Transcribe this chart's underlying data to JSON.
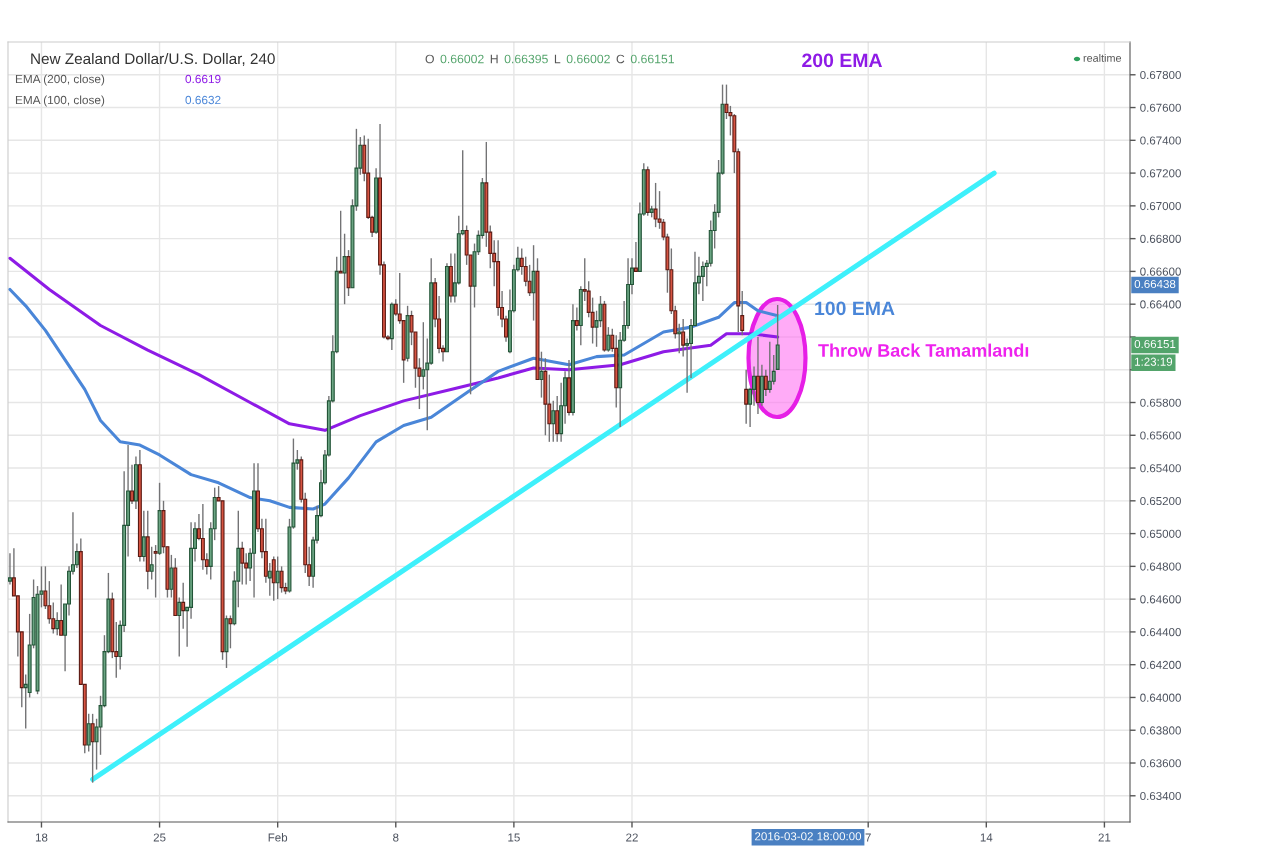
{
  "chart_data": {
    "type": "candlestick",
    "title": "New Zealand Dollar/U.S. Dollar, 240",
    "subtitle": "O 0.66002 H 0.66395 L 0.66002 C 0.66151",
    "categories": [
      null,
      null,
      null,
      null,
      null,
      null,
      null,
      null,
      "18",
      null,
      null,
      null,
      null,
      null,
      null,
      null,
      null,
      null,
      null,
      null,
      null,
      null,
      null,
      null,
      null,
      null,
      null,
      null,
      null,
      null,
      null,
      null,
      null,
      null,
      null,
      null,
      null,
      null,
      "25",
      null,
      null,
      null,
      null,
      null,
      null,
      null,
      null,
      null,
      null,
      null,
      null,
      null,
      null,
      null,
      null,
      null,
      null,
      null,
      null,
      null,
      null,
      null,
      null,
      null,
      null,
      null,
      null,
      null,
      "Feb",
      null,
      null,
      null,
      null,
      null,
      null,
      null,
      null,
      null,
      null,
      null,
      null,
      null,
      null,
      null,
      null,
      null,
      null,
      null,
      null,
      null,
      null,
      null,
      null,
      null,
      null,
      null,
      null,
      null,
      "8",
      null,
      null,
      null,
      null,
      null,
      null,
      null,
      null,
      null,
      null,
      null,
      null,
      null,
      null,
      null,
      null,
      null,
      null,
      null,
      null,
      null,
      null,
      null,
      null,
      null,
      null,
      null,
      null,
      null,
      "15",
      null,
      null,
      null,
      null,
      null,
      null,
      null,
      null,
      null,
      null,
      null,
      null,
      null,
      null,
      null,
      null,
      null,
      null,
      null,
      null,
      null,
      null,
      null,
      null,
      null,
      null,
      null,
      null,
      null,
      "22",
      null,
      null,
      null,
      null,
      null,
      null,
      null,
      null,
      null,
      null,
      null,
      null,
      null,
      null,
      null,
      null,
      null,
      null,
      null,
      null,
      null,
      null,
      null,
      null,
      null,
      null,
      null,
      null,
      null,
      null,
      null,
      null,
      null,
      null,
      null,
      null,
      null,
      null,
      null,
      null,
      null,
      null,
      null,
      null,
      null,
      null,
      null,
      null,
      null,
      null,
      null,
      null,
      null,
      null,
      null,
      null,
      null,
      null,
      null,
      "7",
      null,
      null,
      null,
      null,
      null,
      null,
      null,
      null,
      null,
      null,
      null,
      null,
      null,
      null,
      null,
      null,
      null,
      null,
      null,
      null,
      null,
      null,
      null,
      null,
      null,
      null,
      null,
      null,
      null,
      "14",
      null,
      null,
      null,
      null,
      null,
      null,
      null,
      null,
      null,
      null,
      null,
      null,
      null,
      null,
      null,
      null,
      null,
      null,
      null,
      null,
      null,
      null,
      null,
      null,
      null,
      null,
      null,
      null,
      null,
      "21",
      null,
      null,
      null,
      null,
      null,
      null
    ],
    "ohlc": [
      [
        0.6471,
        0.6488,
        0.6469,
        0.6473
      ],
      [
        0.6473,
        0.6491,
        0.6462,
        0.6462
      ],
      [
        0.6462,
        0.6462,
        0.6425,
        0.644
      ],
      [
        0.644,
        0.644,
        0.6394,
        0.6406
      ],
      [
        0.6406,
        0.6414,
        0.6381,
        0.6408
      ],
      [
        0.6403,
        0.6451,
        0.64,
        0.6432
      ],
      [
        0.6432,
        0.6472,
        0.643,
        0.6461
      ],
      [
        0.6404,
        0.6468,
        0.6402,
        0.6463
      ],
      [
        0.6463,
        0.648,
        0.6455,
        0.6465
      ],
      [
        0.6465,
        0.648,
        0.6454,
        0.6456
      ],
      [
        0.6456,
        0.6471,
        0.6445,
        0.6448
      ],
      [
        0.6448,
        0.6458,
        0.6439,
        0.6442
      ],
      [
        0.6442,
        0.6452,
        0.6438,
        0.6447
      ],
      [
        0.6447,
        0.6469,
        0.6438,
        0.6438
      ],
      [
        0.6438,
        0.6457,
        0.6416,
        0.6457
      ],
      [
        0.6457,
        0.648,
        0.645,
        0.6477
      ],
      [
        0.6477,
        0.6513,
        0.6475,
        0.6481
      ],
      [
        0.6481,
        0.6494,
        0.6479,
        0.6489
      ],
      [
        0.6489,
        0.6497,
        0.6408,
        0.6408
      ],
      [
        0.6408,
        0.6408,
        0.6366,
        0.6371
      ],
      [
        0.6371,
        0.639,
        0.6367,
        0.6384
      ],
      [
        0.6384,
        0.639,
        0.6348,
        0.6373
      ],
      [
        0.6373,
        0.6387,
        0.6356,
        0.6382
      ],
      [
        0.6382,
        0.6401,
        0.6365,
        0.6395
      ],
      [
        0.6395,
        0.6438,
        0.6394,
        0.6428
      ],
      [
        0.6428,
        0.6476,
        0.6427,
        0.646
      ],
      [
        0.646,
        0.6464,
        0.6424,
        0.6428
      ],
      [
        0.6428,
        0.6446,
        0.6412,
        0.6425
      ],
      [
        0.6425,
        0.6447,
        0.6417,
        0.6444
      ],
      [
        0.6444,
        0.6538,
        0.644,
        0.6505
      ],
      [
        0.6505,
        0.6554,
        0.6486,
        0.6526
      ],
      [
        0.6526,
        0.6542,
        0.6518,
        0.652
      ],
      [
        0.652,
        0.6547,
        0.6515,
        0.6542
      ],
      [
        0.6542,
        0.6551,
        0.6483,
        0.6486
      ],
      [
        0.6486,
        0.6514,
        0.6483,
        0.6498
      ],
      [
        0.6498,
        0.6514,
        0.6466,
        0.6477
      ],
      [
        0.6477,
        0.6492,
        0.6472,
        0.6481
      ],
      [
        0.6489,
        0.6493,
        0.6461,
        0.6488
      ],
      [
        0.6488,
        0.6531,
        0.6487,
        0.6514
      ],
      [
        0.6514,
        0.652,
        0.6488,
        0.6492
      ],
      [
        0.6492,
        0.6492,
        0.6461,
        0.6466
      ],
      [
        0.6466,
        0.6487,
        0.6461,
        0.6479
      ],
      [
        0.6479,
        0.6485,
        0.645,
        0.645
      ],
      [
        0.645,
        0.6461,
        0.6425,
        0.6458
      ],
      [
        0.6458,
        0.647,
        0.6442,
        0.6453
      ],
      [
        0.6453,
        0.6455,
        0.6431,
        0.6455
      ],
      [
        0.6455,
        0.6507,
        0.6448,
        0.6491
      ],
      [
        0.6491,
        0.6507,
        0.6483,
        0.6503
      ],
      [
        0.6503,
        0.6512,
        0.6496,
        0.6497
      ],
      [
        0.6497,
        0.6518,
        0.6478,
        0.6484
      ],
      [
        0.6484,
        0.6488,
        0.6475,
        0.648
      ],
      [
        0.648,
        0.6507,
        0.6472,
        0.6503
      ],
      [
        0.6503,
        0.6528,
        0.6496,
        0.6522
      ],
      [
        0.6522,
        0.6529,
        0.652,
        0.652
      ],
      [
        0.652,
        0.652,
        0.6423,
        0.6428
      ],
      [
        0.6428,
        0.645,
        0.6418,
        0.6448
      ],
      [
        0.6448,
        0.645,
        0.643,
        0.6445
      ],
      [
        0.6445,
        0.6477,
        0.6444,
        0.6471
      ],
      [
        0.6471,
        0.6514,
        0.6455,
        0.6491
      ],
      [
        0.6491,
        0.6495,
        0.6469,
        0.6482
      ],
      [
        0.6482,
        0.6488,
        0.6469,
        0.6479
      ],
      [
        0.6479,
        0.6491,
        0.6471,
        0.6488
      ],
      [
        0.6488,
        0.6543,
        0.6461,
        0.6526
      ],
      [
        0.6526,
        0.6543,
        0.6501,
        0.6503
      ],
      [
        0.6503,
        0.6509,
        0.6485,
        0.6489
      ],
      [
        0.6489,
        0.6509,
        0.647,
        0.6474
      ],
      [
        0.6473,
        0.6482,
        0.6462,
        0.6477
      ],
      [
        0.6484,
        0.6486,
        0.6459,
        0.647
      ],
      [
        0.647,
        0.6486,
        0.646,
        0.6477
      ],
      [
        0.6477,
        0.648,
        0.6464,
        0.6467
      ],
      [
        0.6467,
        0.647,
        0.6463,
        0.6465
      ],
      [
        0.6465,
        0.6509,
        0.6464,
        0.6504
      ],
      [
        0.6504,
        0.6558,
        0.6503,
        0.6543
      ],
      [
        0.6543,
        0.6551,
        0.6539,
        0.6545
      ],
      [
        0.6545,
        0.6547,
        0.6519,
        0.6521
      ],
      [
        0.6521,
        0.6525,
        0.6476,
        0.6481
      ],
      [
        0.6481,
        0.6492,
        0.6468,
        0.6474
      ],
      [
        0.6474,
        0.6498,
        0.6467,
        0.6496
      ],
      [
        0.6496,
        0.6517,
        0.6494,
        0.6511
      ],
      [
        0.6511,
        0.6539,
        0.651,
        0.6531
      ],
      [
        0.6531,
        0.6551,
        0.653,
        0.6548
      ],
      [
        0.6548,
        0.6584,
        0.6547,
        0.6581
      ],
      [
        0.6581,
        0.6621,
        0.658,
        0.6611
      ],
      [
        0.6611,
        0.6669,
        0.661,
        0.666
      ],
      [
        0.666,
        0.6697,
        0.6659,
        0.6659
      ],
      [
        0.6659,
        0.6683,
        0.664,
        0.6669
      ],
      [
        0.6669,
        0.6673,
        0.6645,
        0.665
      ],
      [
        0.665,
        0.6704,
        0.665,
        0.67
      ],
      [
        0.67,
        0.6747,
        0.6697,
        0.6723
      ],
      [
        0.6723,
        0.6742,
        0.6719,
        0.6737
      ],
      [
        0.6737,
        0.6743,
        0.6715,
        0.672
      ],
      [
        0.672,
        0.6741,
        0.6692,
        0.6693
      ],
      [
        0.6693,
        0.6694,
        0.6681,
        0.6684
      ],
      [
        0.6684,
        0.6723,
        0.6683,
        0.6717
      ],
      [
        0.6717,
        0.675,
        0.6658,
        0.6664
      ],
      [
        0.6664,
        0.6666,
        0.6619,
        0.662
      ],
      [
        0.662,
        0.6621,
        0.6618,
        0.6619
      ],
      [
        0.6619,
        0.6641,
        0.6612,
        0.664
      ],
      [
        0.664,
        0.6643,
        0.6633,
        0.6634
      ],
      [
        0.6634,
        0.6659,
        0.6628,
        0.663
      ],
      [
        0.663,
        0.663,
        0.6592,
        0.6606
      ],
      [
        0.6607,
        0.6639,
        0.6605,
        0.6633
      ],
      [
        0.6633,
        0.6636,
        0.6615,
        0.6623
      ],
      [
        0.6623,
        0.6623,
        0.6589,
        0.6601
      ],
      [
        0.6601,
        0.6607,
        0.6576,
        0.6596
      ],
      [
        0.6596,
        0.6629,
        0.6588,
        0.66
      ],
      [
        0.66,
        0.6619,
        0.6563,
        0.6604
      ],
      [
        0.6604,
        0.6668,
        0.6603,
        0.6653
      ],
      [
        0.6653,
        0.6656,
        0.6626,
        0.6631
      ],
      [
        0.6631,
        0.6645,
        0.661,
        0.6613
      ],
      [
        0.6613,
        0.6615,
        0.6605,
        0.6611
      ],
      [
        0.6611,
        0.6665,
        0.6611,
        0.6663
      ],
      [
        0.6663,
        0.6671,
        0.6641,
        0.6645
      ],
      [
        0.6645,
        0.6671,
        0.6641,
        0.6653
      ],
      [
        0.6653,
        0.6694,
        0.6652,
        0.6683
      ],
      [
        0.6683,
        0.6734,
        0.6682,
        0.6685
      ],
      [
        0.6685,
        0.6688,
        0.6664,
        0.667
      ],
      [
        0.667,
        0.667,
        0.6585,
        0.6651
      ],
      [
        0.6651,
        0.6677,
        0.6638,
        0.6672
      ],
      [
        0.6672,
        0.6685,
        0.667,
        0.6682
      ],
      [
        0.6682,
        0.6717,
        0.668,
        0.6714
      ],
      [
        0.6714,
        0.6739,
        0.6675,
        0.6684
      ],
      [
        0.6684,
        0.6688,
        0.6662,
        0.6671
      ],
      [
        0.6671,
        0.6679,
        0.6651,
        0.6666
      ],
      [
        0.6666,
        0.6679,
        0.6633,
        0.6638
      ],
      [
        0.6638,
        0.6648,
        0.6626,
        0.6631
      ],
      [
        0.6631,
        0.6633,
        0.6617,
        0.662
      ],
      [
        0.6611,
        0.6649,
        0.661,
        0.6636
      ],
      [
        0.6636,
        0.6664,
        0.6635,
        0.6661
      ],
      [
        0.6661,
        0.6675,
        0.666,
        0.6668
      ],
      [
        0.6668,
        0.6674,
        0.6658,
        0.6663
      ],
      [
        0.6663,
        0.6669,
        0.6651,
        0.6654
      ],
      [
        0.6654,
        0.6664,
        0.6645,
        0.6647
      ],
      [
        0.6647,
        0.6676,
        0.663,
        0.666
      ],
      [
        0.666,
        0.6668,
        0.6594,
        0.6594
      ],
      [
        0.6594,
        0.6611,
        0.6583,
        0.6599
      ],
      [
        0.6599,
        0.6607,
        0.656,
        0.6579
      ],
      [
        0.6579,
        0.6597,
        0.6556,
        0.6567
      ],
      [
        0.6567,
        0.6581,
        0.6556,
        0.6575
      ],
      [
        0.6575,
        0.6584,
        0.6556,
        0.6561
      ],
      [
        0.6561,
        0.6592,
        0.6556,
        0.6578
      ],
      [
        0.6578,
        0.6599,
        0.6567,
        0.6595
      ],
      [
        0.6595,
        0.6606,
        0.6572,
        0.6574
      ],
      [
        0.6574,
        0.664,
        0.6572,
        0.663
      ],
      [
        0.663,
        0.6638,
        0.6624,
        0.6627
      ],
      [
        0.6627,
        0.6651,
        0.6615,
        0.6649
      ],
      [
        0.6649,
        0.6668,
        0.6642,
        0.6648
      ],
      [
        0.6648,
        0.6654,
        0.6632,
        0.6635
      ],
      [
        0.6635,
        0.6644,
        0.6616,
        0.6626
      ],
      [
        0.6626,
        0.6636,
        0.6614,
        0.663
      ],
      [
        0.663,
        0.6645,
        0.6626,
        0.664
      ],
      [
        0.664,
        0.6642,
        0.6611,
        0.6612
      ],
      [
        0.6612,
        0.6626,
        0.6611,
        0.6621
      ],
      [
        0.6621,
        0.6625,
        0.6611,
        0.6613
      ],
      [
        0.6613,
        0.6621,
        0.6577,
        0.6589
      ],
      [
        0.6589,
        0.6623,
        0.6565,
        0.6618
      ],
      [
        0.6618,
        0.6642,
        0.6617,
        0.6627
      ],
      [
        0.6627,
        0.6668,
        0.6625,
        0.6652
      ],
      [
        0.6652,
        0.6668,
        0.6646,
        0.6662
      ],
      [
        0.6662,
        0.6678,
        0.666,
        0.666
      ],
      [
        0.666,
        0.6702,
        0.666,
        0.6695
      ],
      [
        0.6695,
        0.6726,
        0.6694,
        0.6722
      ],
      [
        0.6722,
        0.6724,
        0.6694,
        0.6696
      ],
      [
        0.6696,
        0.67,
        0.6693,
        0.6698
      ],
      [
        0.6698,
        0.6714,
        0.6687,
        0.6692
      ],
      [
        0.6692,
        0.6709,
        0.6686,
        0.669
      ],
      [
        0.669,
        0.6692,
        0.6679,
        0.6681
      ],
      [
        0.6681,
        0.6683,
        0.6647,
        0.6661
      ],
      [
        0.6661,
        0.6674,
        0.6634,
        0.6636
      ],
      [
        0.6636,
        0.6639,
        0.6619,
        0.6622
      ],
      [
        0.6622,
        0.6628,
        0.661,
        0.6623
      ],
      [
        0.6623,
        0.6631,
        0.6608,
        0.6615
      ],
      [
        0.6615,
        0.6619,
        0.6586,
        0.6616
      ],
      [
        0.6616,
        0.6631,
        0.6595,
        0.6627
      ],
      [
        0.6627,
        0.6672,
        0.6627,
        0.6653
      ],
      [
        0.6653,
        0.6669,
        0.6646,
        0.6657
      ],
      [
        0.6657,
        0.6666,
        0.6642,
        0.6663
      ],
      [
        0.6663,
        0.6667,
        0.6651,
        0.6665
      ],
      [
        0.6665,
        0.6691,
        0.6663,
        0.6685
      ],
      [
        0.6685,
        0.6701,
        0.6674,
        0.6696
      ],
      [
        0.6696,
        0.6728,
        0.6693,
        0.672
      ],
      [
        0.672,
        0.6774,
        0.6719,
        0.6762
      ],
      [
        0.6762,
        0.6774,
        0.6753,
        0.6757
      ],
      [
        0.6757,
        0.6761,
        0.6743,
        0.6755
      ],
      [
        0.6755,
        0.6756,
        0.672,
        0.6733
      ],
      [
        0.6733,
        0.6735,
        0.6623,
        0.6639
      ],
      [
        0.6633,
        0.6648,
        0.6621,
        0.6624
      ],
      [
        0.6588,
        0.66,
        0.6567,
        0.6579
      ],
      [
        0.6579,
        0.6589,
        0.6565,
        0.6588
      ],
      [
        0.6588,
        0.6602,
        0.6578,
        0.6596
      ],
      [
        0.6596,
        0.662,
        0.6573,
        0.658
      ],
      [
        0.658,
        0.6603,
        0.6578,
        0.6596
      ],
      [
        0.6596,
        0.66,
        0.6584,
        0.6588
      ],
      [
        0.6588,
        0.6617,
        0.6586,
        0.6593
      ],
      [
        0.6593,
        0.6609,
        0.6591,
        0.6599
      ],
      [
        0.66002,
        0.66395,
        0.66002,
        0.66151
      ],
      null,
      null,
      null,
      null,
      null,
      null,
      null,
      null,
      null,
      null,
      null,
      null,
      null,
      null,
      null,
      null,
      null,
      null,
      null,
      null,
      null,
      null,
      null,
      null,
      null,
      null,
      null,
      null,
      null,
      null,
      null,
      null,
      null,
      null,
      null,
      null,
      null,
      null,
      null,
      null,
      null,
      null,
      null,
      null,
      null,
      null,
      null,
      null,
      null,
      null,
      null,
      null,
      null,
      null,
      null,
      null,
      null,
      null,
      null,
      null,
      null,
      null,
      null,
      null,
      null,
      null,
      null,
      null,
      null,
      null,
      null,
      null,
      null,
      null,
      null,
      null,
      null,
      null,
      null,
      null,
      null,
      null,
      null,
      null,
      null,
      null,
      null,
      null,
      null
    ],
    "series": [
      {
        "name": "EMA (200, close) 0.6619",
        "type": "line",
        "color": "#8e1be6",
        "values": [
          0.6668,
          null,
          null,
          null,
          null,
          null,
          null,
          null,
          null,
          null,
          0.6649,
          null,
          null,
          null,
          null,
          null,
          null,
          null,
          null,
          null,
          null,
          null,
          null,
          0.6627,
          null,
          null,
          null,
          null,
          null,
          null,
          null,
          null,
          null,
          null,
          null,
          0.6612,
          null,
          null,
          null,
          null,
          null,
          null,
          null,
          null,
          null,
          null,
          null,
          null,
          0.6597,
          null,
          null,
          null,
          null,
          null,
          null,
          null,
          null,
          null,
          null,
          null,
          null,
          0.658,
          null,
          null,
          null,
          null,
          null,
          null,
          null,
          null,
          null,
          0.6567,
          null,
          null,
          null,
          null,
          null,
          null,
          null,
          null,
          0.6563,
          null,
          null,
          null,
          null,
          null,
          null,
          null,
          null,
          0.6572,
          null,
          null,
          null,
          null,
          null,
          null,
          null,
          null,
          null,
          null,
          0.6581,
          null,
          null,
          null,
          null,
          null,
          null,
          null,
          null,
          null,
          null,
          null,
          0.6588,
          null,
          null,
          null,
          null,
          null,
          null,
          null,
          null,
          null,
          null,
          null,
          0.6595,
          null,
          null,
          null,
          null,
          null,
          null,
          null,
          null,
          0.6601,
          null,
          null,
          null,
          null,
          null,
          null,
          null,
          null,
          0.66,
          null,
          null,
          null,
          null,
          null,
          null,
          null,
          null,
          null,
          null,
          null,
          null,
          0.6603,
          null,
          null,
          null,
          null,
          null,
          null,
          null,
          null,
          null,
          null,
          0.6611,
          null,
          null,
          null,
          null,
          null,
          null,
          null,
          null,
          null,
          null,
          null,
          0.6615,
          null,
          null,
          null,
          0.6622,
          null,
          null,
          null,
          null,
          null,
          0.6622,
          null,
          null,
          null,
          null,
          null,
          null,
          0.662,
          null,
          null,
          null,
          null,
          null,
          null,
          null,
          null,
          null,
          null,
          null,
          null,
          null,
          null,
          null,
          null,
          null,
          null,
          null,
          null,
          null,
          null,
          null,
          null,
          null,
          null,
          null,
          null,
          null,
          null,
          null,
          null,
          null,
          null,
          null,
          null,
          null,
          null,
          null,
          null,
          null,
          null,
          null,
          null,
          null,
          null,
          null,
          null,
          null,
          null,
          null,
          null,
          null,
          null,
          null,
          null,
          null,
          null,
          null,
          null,
          null,
          null,
          null,
          null,
          null,
          null,
          null,
          null,
          null,
          null,
          null,
          null,
          null,
          null,
          null,
          null,
          null,
          null,
          null,
          null,
          null,
          null,
          null,
          null,
          null,
          null,
          null,
          null,
          null
        ]
      },
      {
        "name": "EMA (100, close) 0.6632",
        "type": "line",
        "color": "#4a86d8",
        "values": [
          0.6649,
          null,
          null,
          null,
          0.6639,
          null,
          null,
          null,
          null,
          0.6624,
          null,
          null,
          null,
          null,
          0.6606,
          null,
          null,
          null,
          null,
          0.6588,
          null,
          null,
          null,
          0.6569,
          null,
          null,
          null,
          null,
          0.6556,
          null,
          null,
          null,
          null,
          0.6554,
          null,
          null,
          null,
          null,
          0.6548,
          null,
          null,
          null,
          null,
          null,
          null,
          null,
          0.6536,
          null,
          null,
          null,
          null,
          null,
          null,
          0.6531,
          null,
          null,
          null,
          null,
          null,
          null,
          null,
          0.6522,
          null,
          null,
          null,
          null,
          0.652,
          null,
          null,
          null,
          null,
          0.6516,
          null,
          null,
          null,
          null,
          null,
          0.6515,
          null,
          null,
          0.6518,
          null,
          null,
          null,
          null,
          null,
          0.6534,
          null,
          null,
          null,
          null,
          null,
          null,
          0.6556,
          null,
          null,
          null,
          null,
          null,
          null,
          0.6566,
          null,
          null,
          null,
          null,
          null,
          null,
          0.6571,
          null,
          null,
          null,
          null,
          null,
          null,
          null,
          null,
          0.6586,
          null,
          null,
          null,
          null,
          null,
          null,
          null,
          0.6599,
          null,
          null,
          null,
          null,
          null,
          null,
          null,
          null,
          0.6607,
          null,
          null,
          null,
          null,
          null,
          null,
          null,
          null,
          0.6603,
          null,
          null,
          null,
          null,
          null,
          null,
          0.6608,
          null,
          null,
          null,
          null,
          null,
          null,
          0.6609,
          null,
          null,
          null,
          null,
          0.6616,
          null,
          null,
          null,
          null,
          0.6623,
          null,
          null,
          null,
          null,
          null,
          null,
          0.6626,
          null,
          null,
          null,
          null,
          null,
          null,
          0.6632,
          null,
          null,
          null,
          0.6641,
          null,
          null,
          0.6641,
          null,
          null,
          0.6636,
          null,
          null,
          null,
          null,
          0.6633,
          null,
          null,
          null,
          null,
          null,
          null,
          null,
          null,
          null,
          null,
          null,
          null,
          null,
          null,
          null,
          null,
          null,
          null,
          null,
          null,
          null,
          null,
          null,
          null,
          null,
          null,
          null,
          null,
          null,
          null,
          null,
          null,
          null,
          null,
          null,
          null,
          null,
          null,
          null,
          null,
          null,
          null,
          null,
          null,
          null,
          null,
          null,
          null,
          null,
          null,
          null,
          null,
          null,
          null,
          null,
          null,
          null,
          null,
          null,
          null,
          null,
          null,
          null,
          null,
          null,
          null,
          null,
          null,
          null,
          null,
          null,
          null,
          null,
          null,
          null,
          null,
          null,
          null,
          null,
          null,
          null,
          null,
          null,
          null,
          null,
          null,
          null,
          null,
          null
        ]
      },
      {
        "type": "line",
        "color": "#3ef0fb",
        "values": [
          null,
          null,
          null,
          null,
          null,
          null,
          null,
          null,
          null,
          null,
          null,
          null,
          null,
          null,
          null,
          null,
          null,
          null,
          null,
          null,
          null,
          0.635,
          null,
          null,
          null,
          null,
          null,
          null,
          null,
          null,
          null,
          null,
          null,
          null,
          null,
          null,
          null,
          null,
          null,
          null,
          null,
          null,
          null,
          null,
          null,
          null,
          null,
          null,
          null,
          null,
          null,
          null,
          null,
          null,
          null,
          null,
          null,
          null,
          null,
          null,
          null,
          null,
          null,
          null,
          null,
          null,
          null,
          null,
          null,
          null,
          null,
          null,
          null,
          null,
          null,
          null,
          null,
          null,
          null,
          null,
          null,
          null,
          null,
          null,
          null,
          null,
          null,
          null,
          null,
          null,
          null,
          null,
          null,
          null,
          null,
          null,
          null,
          null,
          null,
          null,
          null,
          null,
          null,
          null,
          null,
          null,
          null,
          null,
          null,
          null,
          null,
          null,
          null,
          null,
          null,
          null,
          null,
          null,
          null,
          null,
          null,
          null,
          null,
          null,
          null,
          null,
          null,
          null,
          null,
          null,
          null,
          null,
          null,
          null,
          null,
          null,
          null,
          null,
          null,
          null,
          null,
          null,
          null,
          null,
          null,
          null,
          null,
          null,
          null,
          null,
          null,
          null,
          null,
          null,
          null,
          null,
          null,
          null,
          null,
          null,
          null,
          null,
          null,
          null,
          null,
          null,
          null,
          null,
          null,
          null,
          null,
          null,
          null,
          null,
          null,
          null,
          null,
          null,
          null,
          null,
          null,
          null,
          null,
          null,
          null,
          null,
          null,
          null,
          null,
          null,
          null,
          null,
          null,
          null,
          null,
          null,
          null,
          null,
          null,
          null,
          null,
          null,
          null,
          null,
          null,
          null,
          null,
          null,
          null,
          null,
          null,
          null,
          null,
          null,
          null,
          null,
          null,
          null,
          null,
          null,
          null,
          null,
          null,
          null,
          null,
          null,
          null,
          null,
          null,
          null,
          null,
          null,
          null,
          null,
          null,
          null,
          null,
          null,
          null,
          null,
          null,
          null,
          null,
          null,
          null,
          null,
          null,
          null,
          null,
          null,
          0.672,
          null,
          null,
          null,
          null,
          null,
          null,
          null,
          null,
          null,
          null,
          null,
          null,
          null,
          null,
          null,
          null,
          null,
          null,
          null,
          null,
          null,
          null,
          null,
          null,
          null,
          null,
          null,
          null,
          null,
          null,
          null,
          null,
          null,
          null
        ]
      }
    ],
    "ylim": [
      0.6324,
      0.68
    ],
    "yticks": [
      {
        "value": 0.634,
        "label": "0.63400"
      },
      {
        "value": 0.636,
        "label": "0.63600"
      },
      {
        "value": 0.638,
        "label": "0.63800"
      },
      {
        "value": 0.64,
        "label": "0.64000"
      },
      {
        "value": 0.642,
        "label": "0.64200"
      },
      {
        "value": 0.644,
        "label": "0.64400"
      },
      {
        "value": 0.646,
        "label": "0.64600"
      },
      {
        "value": 0.648,
        "label": "0.64800"
      },
      {
        "value": 0.65,
        "label": "0.65000"
      },
      {
        "value": 0.652,
        "label": "0.65200"
      },
      {
        "value": 0.654,
        "label": "0.65400"
      },
      {
        "value": 0.656,
        "label": "0.65600"
      },
      {
        "value": 0.658,
        "label": "0.65800"
      },
      {
        "value": 0.66,
        "label": null
      },
      {
        "value": 0.662,
        "label": null
      },
      {
        "value": 0.664,
        "label": "0.66400"
      },
      {
        "value": 0.666,
        "label": "0.66600"
      },
      {
        "value": 0.668,
        "label": "0.66800"
      },
      {
        "value": 0.67,
        "label": "0.67000"
      },
      {
        "value": 0.672,
        "label": "0.67200"
      },
      {
        "value": 0.674,
        "label": "0.67400"
      },
      {
        "value": 0.676,
        "label": "0.67600"
      },
      {
        "value": 0.678,
        "label": "0.67800"
      }
    ],
    "grid": true,
    "annotations": [
      "200 EMA",
      "100 EMA",
      "Throw Back Tamamlandı",
      "0.66438",
      "0.66151",
      "1:23:19",
      "2016-03-02 18:00:00",
      "realtime"
    ]
  }
}
